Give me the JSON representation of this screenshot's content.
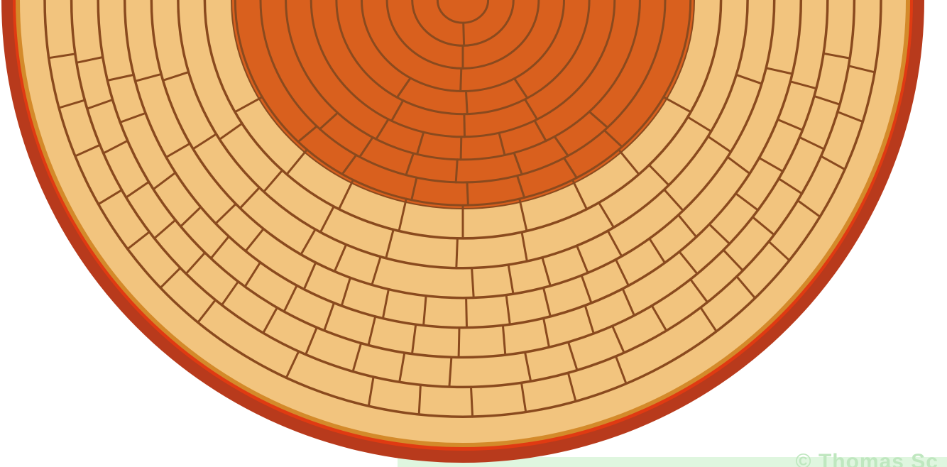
{
  "diagram": {
    "ring_count": 16,
    "heartwood_ring_count": 9,
    "colors": {
      "background": "#ffffff",
      "outer_bark": "#b83a1c",
      "inner_bark": "#e03a12",
      "cambium": "#d48a2a",
      "sapwood": "#f2c47e",
      "heartwood": "#d9601e",
      "growth_ring": "#8a4a1e",
      "ray": "#8a4a1e",
      "watermark_band": "#dff6df",
      "watermark_text": "#bfe7bf"
    }
  },
  "watermark": {
    "text": "© Thomas Sc"
  }
}
